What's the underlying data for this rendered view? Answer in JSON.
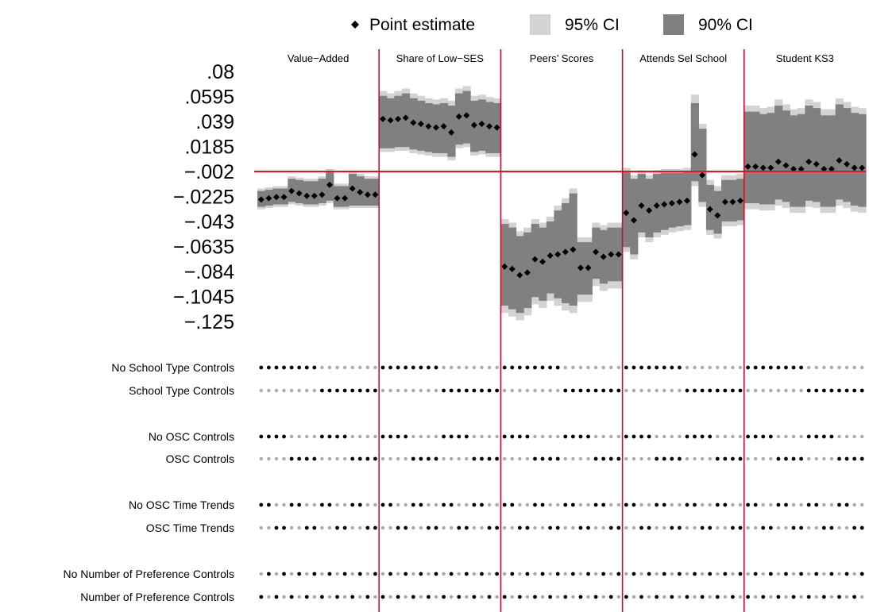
{
  "chart_data": {
    "type": "scatter",
    "title": "",
    "xlabel": "",
    "ylabel": "",
    "ylim": [
      -0.125,
      0.08
    ],
    "y_ticks": [
      ".08",
      ".0595",
      ".039",
      ".0185",
      "−.002",
      "−.0225",
      "−.043",
      "−.0635",
      "−.084",
      "−.1045",
      "−.125"
    ],
    "reference_line": -0.002,
    "legend": {
      "position": "top",
      "point_label": "Point estimate",
      "ci95_label": "95% CI",
      "ci90_label": "90% CI"
    },
    "colors": {
      "ci95": "#d3d3d3",
      "ci90": "#808080",
      "point": "#000000",
      "reference": "#e8141b",
      "separator": "#c8102e",
      "dot_on": "#000000",
      "dot_off": "#aaaaaa"
    },
    "panels": [
      {
        "label": "Value−Added",
        "estimates": [
          -0.025,
          -0.024,
          -0.023,
          -0.023,
          -0.018,
          -0.02,
          -0.022,
          -0.022,
          -0.021,
          -0.013,
          -0.024,
          -0.024,
          -0.016,
          -0.019,
          -0.021,
          -0.021
        ],
        "ci90_lower": [
          -0.031,
          -0.03,
          -0.029,
          -0.029,
          -0.027,
          -0.028,
          -0.029,
          -0.029,
          -0.028,
          -0.026,
          -0.031,
          -0.031,
          -0.03,
          -0.03,
          -0.03,
          -0.03
        ],
        "ci90_upper": [
          -0.018,
          -0.017,
          -0.016,
          -0.016,
          -0.008,
          -0.009,
          -0.01,
          -0.01,
          -0.008,
          -0.002,
          -0.014,
          -0.014,
          -0.004,
          -0.006,
          -0.008,
          -0.008
        ],
        "ci95_lower": [
          -0.033,
          -0.032,
          -0.031,
          -0.031,
          -0.029,
          -0.03,
          -0.031,
          -0.031,
          -0.03,
          -0.028,
          -0.033,
          -0.033,
          -0.032,
          -0.032,
          -0.032,
          -0.032
        ],
        "ci95_upper": [
          -0.016,
          -0.015,
          -0.014,
          -0.014,
          -0.006,
          -0.007,
          -0.008,
          -0.008,
          -0.006,
          0.0,
          -0.012,
          -0.012,
          -0.002,
          -0.004,
          -0.006,
          -0.006
        ]
      },
      {
        "label": "Share of Low−SES",
        "estimates": [
          0.041,
          0.04,
          0.041,
          0.042,
          0.038,
          0.037,
          0.035,
          0.034,
          0.035,
          0.03,
          0.043,
          0.044,
          0.036,
          0.037,
          0.035,
          0.034
        ],
        "ci90_lower": [
          0.017,
          0.017,
          0.018,
          0.018,
          0.016,
          0.015,
          0.014,
          0.013,
          0.013,
          0.01,
          0.02,
          0.021,
          0.014,
          0.015,
          0.013,
          0.013
        ],
        "ci90_upper": [
          0.06,
          0.058,
          0.06,
          0.062,
          0.058,
          0.056,
          0.054,
          0.053,
          0.054,
          0.052,
          0.062,
          0.064,
          0.056,
          0.057,
          0.055,
          0.054
        ],
        "ci95_lower": [
          0.014,
          0.014,
          0.015,
          0.015,
          0.013,
          0.012,
          0.011,
          0.01,
          0.01,
          0.007,
          0.017,
          0.018,
          0.011,
          0.012,
          0.01,
          0.01
        ],
        "ci95_upper": [
          0.064,
          0.062,
          0.064,
          0.066,
          0.062,
          0.06,
          0.058,
          0.057,
          0.058,
          0.056,
          0.066,
          0.068,
          0.06,
          0.061,
          0.059,
          0.058
        ]
      },
      {
        "label": "Peers’ Scores",
        "estimates": [
          -0.08,
          -0.082,
          -0.087,
          -0.085,
          -0.074,
          -0.076,
          -0.071,
          -0.07,
          -0.068,
          -0.066,
          -0.081,
          -0.081,
          -0.068,
          -0.072,
          -0.07,
          -0.07
        ],
        "ci90_lower": [
          -0.112,
          -0.115,
          -0.118,
          -0.114,
          -0.105,
          -0.108,
          -0.102,
          -0.106,
          -0.11,
          -0.112,
          -0.103,
          -0.103,
          -0.09,
          -0.094,
          -0.092,
          -0.092
        ],
        "ci90_upper": [
          -0.045,
          -0.048,
          -0.055,
          -0.052,
          -0.045,
          -0.048,
          -0.043,
          -0.034,
          -0.028,
          -0.02,
          -0.06,
          -0.06,
          -0.048,
          -0.05,
          -0.048,
          -0.048
        ],
        "ci95_lower": [
          -0.118,
          -0.121,
          -0.124,
          -0.12,
          -0.111,
          -0.114,
          -0.108,
          -0.112,
          -0.116,
          -0.118,
          -0.109,
          -0.109,
          -0.096,
          -0.1,
          -0.098,
          -0.098
        ],
        "ci95_upper": [
          -0.041,
          -0.044,
          -0.051,
          -0.048,
          -0.041,
          -0.044,
          -0.039,
          -0.03,
          -0.024,
          -0.016,
          -0.056,
          -0.056,
          -0.044,
          -0.046,
          -0.044,
          -0.044
        ]
      },
      {
        "label": "Attends Sel School",
        "estimates": [
          -0.036,
          -0.042,
          -0.03,
          -0.034,
          -0.03,
          -0.029,
          -0.028,
          -0.027,
          -0.026,
          0.012,
          -0.005,
          -0.033,
          -0.038,
          -0.027,
          -0.027,
          -0.026
        ],
        "ci90_lower": [
          -0.064,
          -0.07,
          -0.052,
          -0.056,
          -0.052,
          -0.05,
          -0.048,
          -0.047,
          -0.046,
          -0.01,
          -0.027,
          -0.05,
          -0.053,
          -0.043,
          -0.043,
          -0.042
        ],
        "ci90_upper": [
          -0.002,
          -0.008,
          -0.004,
          -0.008,
          -0.004,
          -0.003,
          -0.003,
          -0.003,
          -0.002,
          0.054,
          0.033,
          -0.013,
          -0.018,
          -0.009,
          -0.009,
          -0.008
        ],
        "ci95_lower": [
          -0.068,
          -0.074,
          -0.056,
          -0.06,
          -0.056,
          -0.054,
          -0.052,
          -0.051,
          -0.05,
          -0.014,
          -0.031,
          -0.054,
          -0.057,
          -0.047,
          -0.047,
          -0.046
        ],
        "ci95_upper": [
          0.001,
          -0.005,
          -0.001,
          -0.005,
          -0.001,
          0.0,
          0.0,
          0.0,
          0.001,
          0.061,
          0.037,
          -0.009,
          -0.014,
          -0.005,
          -0.005,
          -0.004
        ]
      },
      {
        "label": "Student KS3",
        "estimates": [
          0.002,
          0.002,
          0.001,
          0.001,
          0.006,
          0.003,
          0.0,
          0.0,
          0.006,
          0.004,
          0.0,
          0.0,
          0.007,
          0.004,
          0.001,
          0.001
        ],
        "ci90_lower": [
          -0.028,
          -0.028,
          -0.029,
          -0.029,
          -0.025,
          -0.027,
          -0.031,
          -0.031,
          -0.026,
          -0.027,
          -0.031,
          -0.031,
          -0.025,
          -0.027,
          -0.03,
          -0.031
        ],
        "ci90_upper": [
          0.047,
          0.047,
          0.045,
          0.046,
          0.052,
          0.048,
          0.044,
          0.045,
          0.052,
          0.05,
          0.044,
          0.044,
          0.053,
          0.05,
          0.046,
          0.045
        ],
        "ci95_lower": [
          -0.033,
          -0.033,
          -0.034,
          -0.034,
          -0.03,
          -0.032,
          -0.036,
          -0.036,
          -0.031,
          -0.032,
          -0.036,
          -0.036,
          -0.03,
          -0.032,
          -0.035,
          -0.036
        ],
        "ci95_upper": [
          0.052,
          0.052,
          0.05,
          0.051,
          0.057,
          0.053,
          0.049,
          0.05,
          0.057,
          0.055,
          0.049,
          0.049,
          0.058,
          0.055,
          0.051,
          0.05
        ]
      }
    ],
    "spec_rows": [
      {
        "label": "No School Type Controls",
        "pattern": [
          1,
          1,
          1,
          1,
          1,
          1,
          1,
          1,
          0,
          0,
          0,
          0,
          0,
          0,
          0,
          0
        ]
      },
      {
        "label": "School Type Controls",
        "pattern": [
          0,
          0,
          0,
          0,
          0,
          0,
          0,
          0,
          1,
          1,
          1,
          1,
          1,
          1,
          1,
          1
        ]
      },
      {
        "label": "No OSC Controls",
        "pattern": [
          1,
          1,
          1,
          1,
          0,
          0,
          0,
          0,
          1,
          1,
          1,
          1,
          0,
          0,
          0,
          0
        ]
      },
      {
        "label": "OSC Controls",
        "pattern": [
          0,
          0,
          0,
          0,
          1,
          1,
          1,
          1,
          0,
          0,
          0,
          0,
          1,
          1,
          1,
          1
        ]
      },
      {
        "label": "No OSC Time Trends",
        "pattern": [
          1,
          1,
          0,
          0,
          1,
          1,
          0,
          0,
          1,
          1,
          0,
          0,
          1,
          1,
          0,
          0
        ]
      },
      {
        "label": "OSC Time Trends",
        "pattern": [
          0,
          0,
          1,
          1,
          0,
          0,
          1,
          1,
          0,
          0,
          1,
          1,
          0,
          0,
          1,
          1
        ]
      },
      {
        "label": "No Number of Preference Controls",
        "pattern": [
          0,
          1,
          0,
          1,
          0,
          1,
          0,
          1,
          0,
          1,
          0,
          1,
          0,
          1,
          0,
          1
        ]
      },
      {
        "label": "Number of Preference Controls",
        "pattern": [
          1,
          0,
          1,
          0,
          1,
          0,
          1,
          0,
          1,
          0,
          1,
          0,
          1,
          0,
          1,
          0
        ]
      }
    ]
  }
}
